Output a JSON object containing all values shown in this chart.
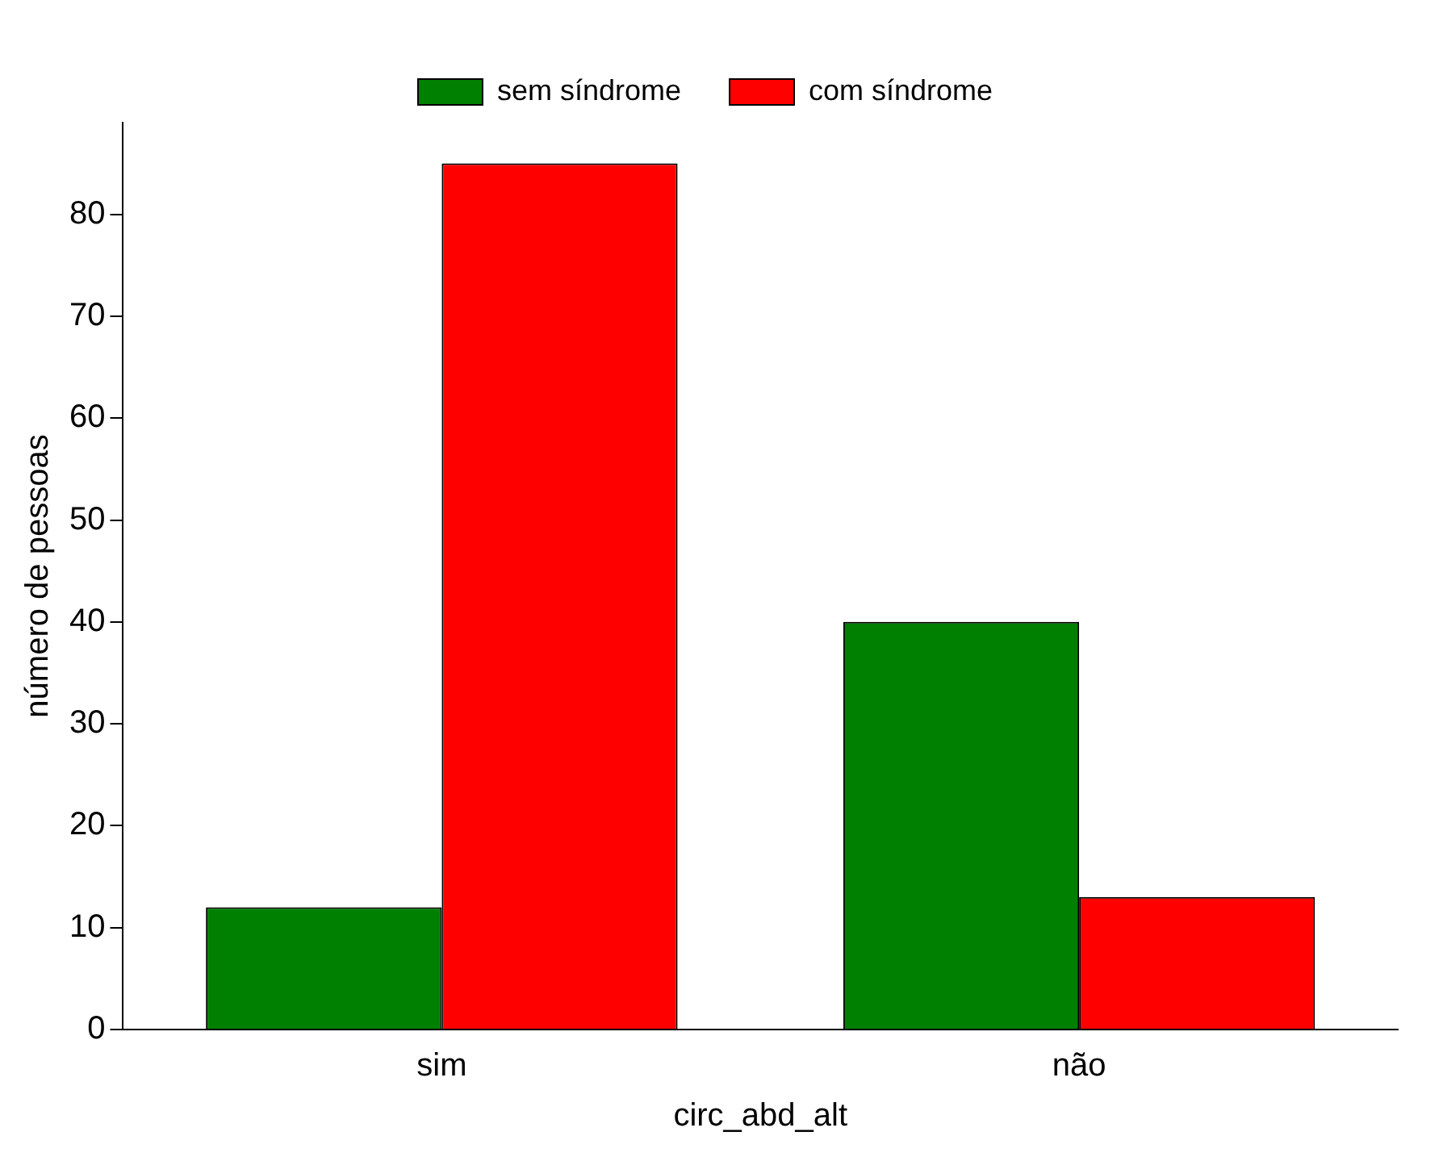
{
  "chart_data": {
    "type": "bar",
    "xlabel": "circ_abd_alt",
    "ylabel": "número de pessoas",
    "categories": [
      "sim",
      "não"
    ],
    "series": [
      {
        "name": "sem síndrome",
        "color": "#008000",
        "values": [
          12,
          40
        ]
      },
      {
        "name": "com síndrome",
        "color": "#ff0000",
        "values": [
          85,
          13
        ]
      }
    ],
    "ylim": [
      0,
      89
    ],
    "yticks": [
      0,
      10,
      20,
      30,
      40,
      50,
      60,
      70,
      80
    ],
    "grid": false,
    "legend": "top"
  }
}
